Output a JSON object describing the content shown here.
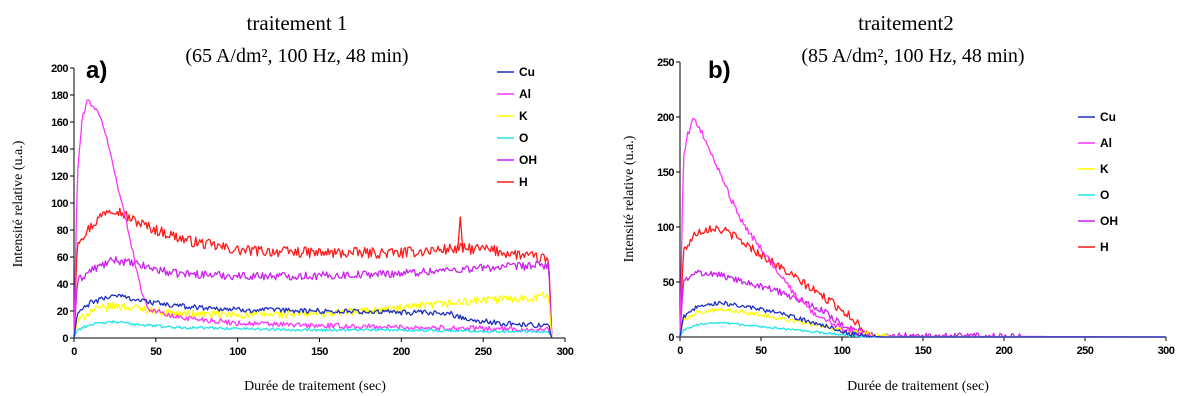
{
  "colors": {
    "Cu": "#1f2fbf",
    "Al": "#ff33ff",
    "K": "#ffff00",
    "O": "#22e6e6",
    "OH": "#cc22ee",
    "H": "#ff1a1a"
  },
  "chart_data": [
    {
      "type": "line",
      "panel_label": "a)",
      "title": "traitement 1",
      "subtitle": "(65 A/dm², 100 Hz, 48 min)",
      "xlabel": "Durée de traitement (sec)",
      "ylabel": "Intensité relative (u.a.)",
      "xlim": [
        0,
        300
      ],
      "ylim": [
        0,
        200
      ],
      "xticks": [
        0,
        50,
        100,
        150,
        200,
        250,
        300
      ],
      "yticks": [
        0,
        20,
        40,
        60,
        80,
        100,
        120,
        140,
        160,
        180,
        200
      ],
      "ytick_labels": [
        "0",
        "20",
        "40",
        "60",
        "80",
        "100",
        "120",
        "140",
        "160",
        "180",
        "200"
      ],
      "legend": [
        "Cu",
        "Al",
        "K",
        "O",
        "OH",
        "H"
      ],
      "legend_position": "right",
      "series": [
        {
          "name": "Cu",
          "x": [
            0,
            2,
            10,
            25,
            40,
            60,
            100,
            150,
            200,
            230,
            240,
            260,
            290,
            292
          ],
          "y": [
            0,
            18,
            26,
            32,
            28,
            24,
            21,
            20,
            19,
            18,
            14,
            11,
            9,
            0
          ],
          "noise": 2
        },
        {
          "name": "Al",
          "x": [
            0,
            2,
            5,
            8,
            12,
            18,
            25,
            30,
            35,
            40,
            45,
            60,
            100,
            150,
            200,
            250,
            290,
            292
          ],
          "y": [
            0,
            120,
            162,
            176,
            172,
            158,
            122,
            96,
            70,
            40,
            22,
            16,
            11,
            9,
            8,
            7,
            6,
            0
          ],
          "noise": 2
        },
        {
          "name": "K",
          "x": [
            0,
            2,
            10,
            25,
            40,
            60,
            100,
            150,
            200,
            250,
            280,
            290,
            292
          ],
          "y": [
            0,
            12,
            20,
            24,
            22,
            18,
            17,
            18,
            22,
            28,
            30,
            32,
            0
          ],
          "noise": 3
        },
        {
          "name": "O",
          "x": [
            0,
            2,
            10,
            25,
            40,
            60,
            100,
            150,
            200,
            250,
            290,
            292
          ],
          "y": [
            0,
            6,
            10,
            12,
            10,
            8,
            7,
            6,
            6,
            5,
            5,
            0
          ],
          "noise": 1
        },
        {
          "name": "OH",
          "x": [
            0,
            2,
            10,
            25,
            40,
            60,
            100,
            150,
            200,
            250,
            290,
            292
          ],
          "y": [
            0,
            42,
            50,
            58,
            54,
            48,
            46,
            46,
            48,
            52,
            54,
            0
          ],
          "noise": 3
        },
        {
          "name": "H",
          "x": [
            0,
            2,
            10,
            20,
            25,
            35,
            50,
            70,
            100,
            150,
            200,
            230,
            250,
            280,
            290,
            292
          ],
          "y": [
            0,
            72,
            82,
            95,
            96,
            88,
            80,
            72,
            65,
            63,
            63,
            66,
            66,
            60,
            58,
            0
          ],
          "noise": 4,
          "spikes": [
            {
              "x": 236,
              "y": 90
            }
          ]
        }
      ]
    },
    {
      "type": "line",
      "panel_label": "b)",
      "title": "traitement2",
      "subtitle": "(85 A/dm², 100 Hz, 48 min)",
      "xlabel": "Durée de traitement (sec)",
      "ylabel": "Intensité relative (u.a.)",
      "xlim": [
        0,
        300
      ],
      "ylim": [
        0,
        250
      ],
      "xticks": [
        0,
        50,
        100,
        150,
        200,
        250,
        300
      ],
      "yticks": [
        0,
        50,
        100,
        150,
        200,
        250
      ],
      "ytick_labels": [
        "0",
        "50",
        "100",
        "150",
        "200",
        "250"
      ],
      "legend": [
        "Cu",
        "Al",
        "K",
        "O",
        "OH",
        "H"
      ],
      "legend_position": "right",
      "series": [
        {
          "name": "Cu",
          "x": [
            0,
            2,
            10,
            25,
            40,
            60,
            80,
            95,
            105,
            115,
            125,
            300
          ],
          "y": [
            0,
            18,
            27,
            31,
            28,
            22,
            14,
            8,
            3,
            1,
            0,
            0
          ],
          "noise": 2
        },
        {
          "name": "Al",
          "x": [
            0,
            2,
            4,
            8,
            12,
            20,
            30,
            40,
            50,
            60,
            70,
            80,
            90,
            100,
            110,
            115,
            120,
            300
          ],
          "y": [
            0,
            160,
            180,
            198,
            190,
            165,
            130,
            100,
            80,
            60,
            40,
            25,
            15,
            8,
            3,
            1,
            0,
            0
          ],
          "noise": 3
        },
        {
          "name": "K",
          "x": [
            0,
            2,
            10,
            25,
            40,
            60,
            80,
            100,
            115,
            125,
            135,
            300
          ],
          "y": [
            0,
            15,
            22,
            25,
            22,
            18,
            12,
            6,
            3,
            1,
            0,
            0
          ],
          "noise": 2
        },
        {
          "name": "O",
          "x": [
            0,
            2,
            10,
            25,
            40,
            60,
            80,
            95,
            105,
            115,
            300
          ],
          "y": [
            0,
            6,
            11,
            13,
            11,
            8,
            5,
            3,
            1,
            0,
            0
          ],
          "noise": 1
        },
        {
          "name": "OH",
          "x": [
            0,
            2,
            10,
            20,
            35,
            50,
            60,
            70,
            80,
            90,
            100,
            110,
            120,
            300
          ],
          "y": [
            0,
            50,
            58,
            58,
            52,
            46,
            42,
            36,
            30,
            22,
            12,
            5,
            1,
            0
          ],
          "noise": 3
        },
        {
          "name": "H",
          "x": [
            0,
            2,
            10,
            20,
            30,
            40,
            50,
            60,
            70,
            80,
            90,
            100,
            110,
            115,
            120,
            300
          ],
          "y": [
            0,
            78,
            95,
            100,
            95,
            85,
            75,
            65,
            55,
            45,
            35,
            25,
            12,
            5,
            0,
            0
          ],
          "noise": 4
        }
      ]
    }
  ]
}
